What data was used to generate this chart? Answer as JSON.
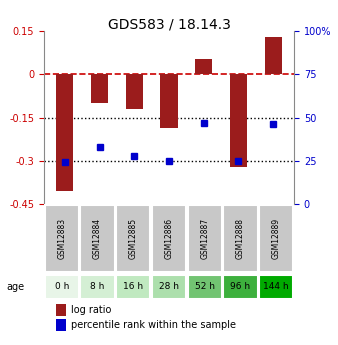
{
  "title": "GDS583 / 18.14.3",
  "samples": [
    "GSM12883",
    "GSM12884",
    "GSM12885",
    "GSM12886",
    "GSM12887",
    "GSM12888",
    "GSM12889"
  ],
  "ages": [
    "0 h",
    "8 h",
    "16 h",
    "28 h",
    "52 h",
    "96 h",
    "144 h"
  ],
  "log_ratios": [
    -0.405,
    -0.1,
    -0.12,
    -0.185,
    0.053,
    -0.32,
    0.128
  ],
  "percentile_ranks": [
    24,
    33,
    28,
    25,
    47,
    25,
    46
  ],
  "bar_color": "#9b1c1c",
  "dot_color": "#0000cc",
  "left_ylim": [
    -0.45,
    0.15
  ],
  "right_ylim": [
    0,
    100
  ],
  "left_yticks": [
    0.15,
    0,
    -0.15,
    -0.3,
    -0.45
  ],
  "right_yticks": [
    100,
    75,
    50,
    25,
    0
  ],
  "right_yticklabels": [
    "100%",
    "75",
    "50",
    "25",
    "0"
  ],
  "hline_zero_color": "#cc0000",
  "hline_dotted_color": "#000000",
  "age_colors": [
    "#e8f5e8",
    "#d4efd4",
    "#c0e9c0",
    "#acdfac",
    "#72c472",
    "#3db03d",
    "#00aa00"
  ],
  "gsm_bg_color": "#c8c8c8",
  "legend_log_color": "#9b1c1c",
  "legend_pct_color": "#0000cc"
}
